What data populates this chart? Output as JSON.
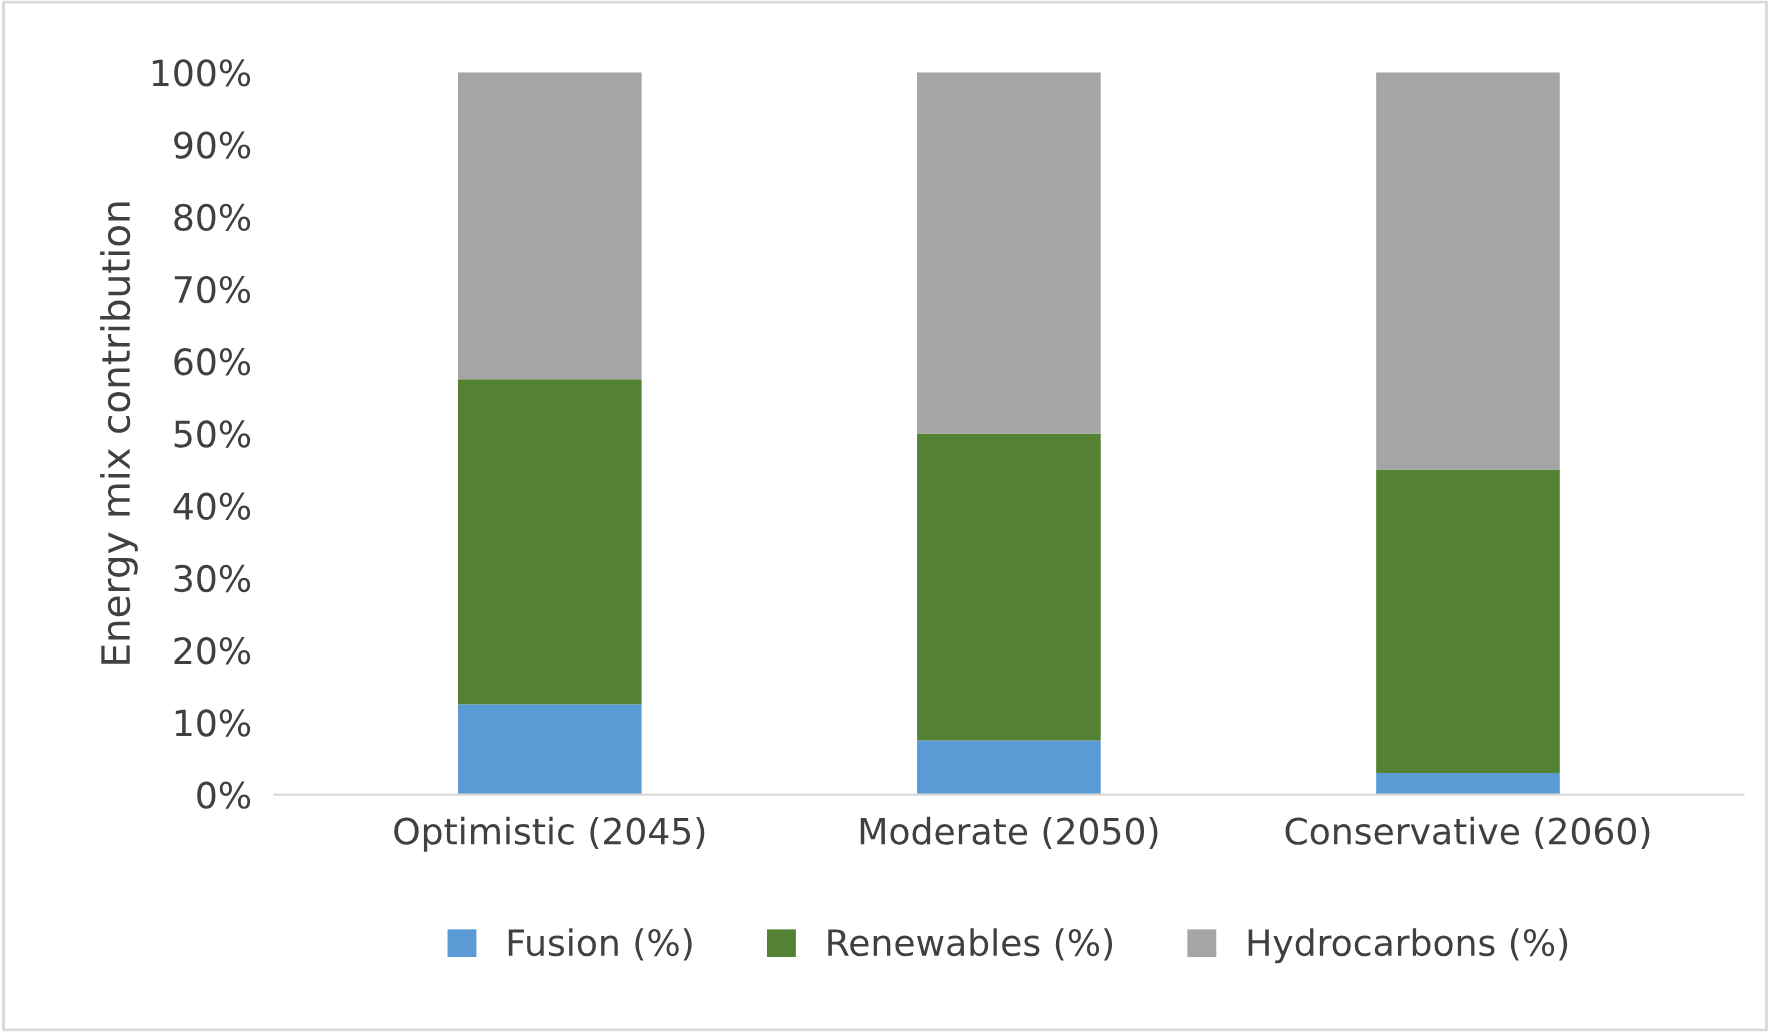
{
  "chart_data": {
    "type": "bar",
    "stacked": true,
    "ylabel": "Energy mix contribution",
    "categories": [
      "Optimistic (2045)",
      "Moderate (2050)",
      "Conservative (2060)"
    ],
    "series": [
      {
        "name": "Fusion (%)",
        "color": "#5b9bd5",
        "values": [
          12.5,
          7.5,
          3
        ]
      },
      {
        "name": "Renewables (%)",
        "color": "#548235",
        "values": [
          45,
          42.5,
          42
        ]
      },
      {
        "name": "Hydrocarbons (%)",
        "color": "#a5a5a5",
        "values": [
          42.5,
          50,
          55
        ]
      }
    ],
    "ylim": [
      0,
      100
    ],
    "yticks": [
      {
        "value": 0,
        "label": "0%"
      },
      {
        "value": 10,
        "label": "10%"
      },
      {
        "value": 20,
        "label": "20%"
      },
      {
        "value": 30,
        "label": "30%"
      },
      {
        "value": 40,
        "label": "40%"
      },
      {
        "value": 50,
        "label": "50%"
      },
      {
        "value": 60,
        "label": "60%"
      },
      {
        "value": 70,
        "label": "70%"
      },
      {
        "value": 80,
        "label": "80%"
      },
      {
        "value": 90,
        "label": "90%"
      },
      {
        "value": 100,
        "label": "100%"
      }
    ],
    "grid": false,
    "legend": "bottom"
  }
}
